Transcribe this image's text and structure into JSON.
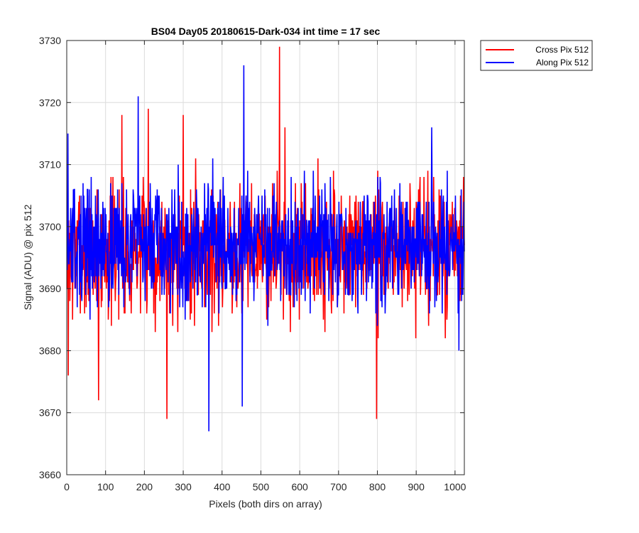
{
  "chart_data": {
    "type": "line",
    "title": "BS04 Day05 20180615-Dark-034 int time = 17 sec",
    "xlabel": "Pixels (both dirs on array)",
    "ylabel": "Signal (ADU) @ pix 512",
    "xlim": [
      0,
      1024
    ],
    "ylim": [
      3660,
      3730
    ],
    "xticks": [
      0,
      100,
      200,
      300,
      400,
      500,
      600,
      700,
      800,
      900,
      1000
    ],
    "yticks": [
      3660,
      3670,
      3680,
      3690,
      3700,
      3710,
      3720,
      3730
    ],
    "grid": true,
    "legend_position": "outside-top-right",
    "series": [
      {
        "name": "Cross Pix 512",
        "color": "#ff0000",
        "x_start": 1,
        "x_step": 1,
        "mean": 3696,
        "noise_amplitude": 7.5,
        "seed": 7,
        "notable_points": [
          [
            4,
            3676
          ],
          [
            82,
            3672
          ],
          [
            258,
            3669
          ],
          [
            548,
            3729
          ],
          [
            798,
            3669
          ],
          [
            300,
            3718
          ],
          [
            210,
            3719
          ],
          [
            142,
            3718
          ],
          [
            562,
            3716
          ]
        ]
      },
      {
        "name": "Along Pix 512",
        "color": "#0000ff",
        "x_start": 1,
        "x_step": 1,
        "mean": 3697,
        "noise_amplitude": 7.0,
        "seed": 13,
        "notable_points": [
          [
            3,
            3715
          ],
          [
            184,
            3721
          ],
          [
            366,
            3667
          ],
          [
            456,
            3726
          ],
          [
            452,
            3671
          ],
          [
            940,
            3716
          ],
          [
            1010,
            3680
          ]
        ]
      }
    ]
  }
}
